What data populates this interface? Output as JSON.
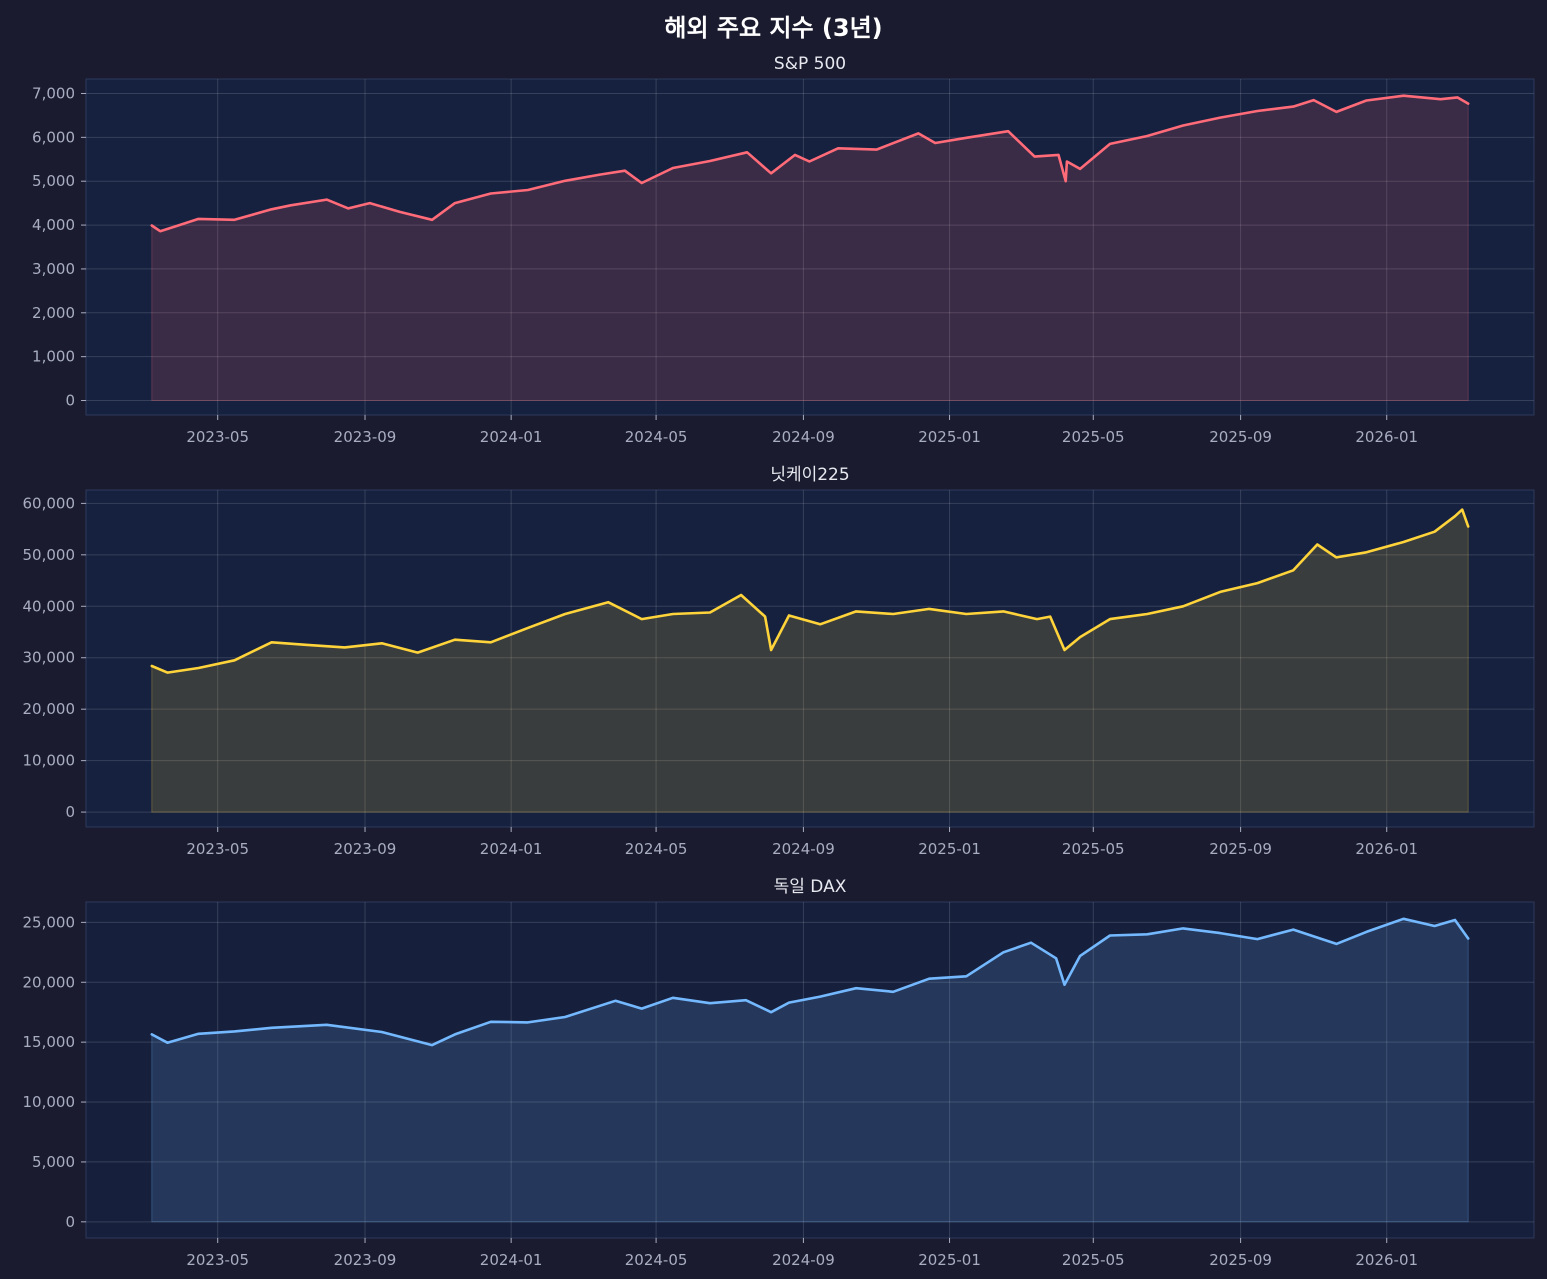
{
  "title": "해외 주요 지수 (3년)",
  "chart_data": [
    {
      "type": "area",
      "title": "S&P 500",
      "color": "#ff6b78",
      "fill": "#ff6b78",
      "x_range": [
        "2023-03-07",
        "2026-03-10"
      ],
      "ylim": [
        -330,
        7330
      ],
      "yticks": [
        0,
        1000,
        2000,
        3000,
        4000,
        5000,
        6000,
        7000
      ],
      "ytick_labels": [
        "0",
        "1,000",
        "2,000",
        "3,000",
        "4,000",
        "5,000",
        "6,000",
        "7,000"
      ],
      "xticks": [
        "2023-05-01",
        "2023-09-01",
        "2024-01-01",
        "2024-05-01",
        "2024-09-01",
        "2025-01-01",
        "2025-05-01",
        "2025-09-01",
        "2026-01-01"
      ],
      "xtick_labels": [
        "2023-05",
        "2023-09",
        "2024-01",
        "2024-05",
        "2024-09",
        "2025-01",
        "2025-05",
        "2025-09",
        "2026-01"
      ],
      "grid": true,
      "series": [
        {
          "x": [
            "2023-03-07",
            "2023-03-14",
            "2023-03-28",
            "2023-04-15",
            "2023-05-15",
            "2023-06-15",
            "2023-07-01",
            "2023-07-31",
            "2023-08-18",
            "2023-09-05",
            "2023-09-30",
            "2023-10-27",
            "2023-11-15",
            "2023-12-15",
            "2024-01-15",
            "2024-02-15",
            "2024-03-15",
            "2024-04-05",
            "2024-04-19",
            "2024-05-15",
            "2024-06-15",
            "2024-07-16",
            "2024-08-05",
            "2024-08-25",
            "2024-09-06",
            "2024-09-30",
            "2024-11-01",
            "2024-12-06",
            "2024-12-20",
            "2025-01-15",
            "2025-02-19",
            "2025-03-13",
            "2025-04-02",
            "2025-04-08",
            "2025-04-09",
            "2025-04-20",
            "2025-05-15",
            "2025-06-15",
            "2025-07-15",
            "2025-08-15",
            "2025-09-15",
            "2025-10-15",
            "2025-11-01",
            "2025-11-20",
            "2025-12-15",
            "2026-01-15",
            "2026-02-15",
            "2026-03-01",
            "2026-03-10"
          ],
          "y": [
            3990,
            3860,
            3980,
            4140,
            4120,
            4360,
            4450,
            4580,
            4380,
            4500,
            4300,
            4120,
            4500,
            4720,
            4800,
            5010,
            5150,
            5240,
            4960,
            5300,
            5460,
            5660,
            5180,
            5600,
            5450,
            5750,
            5720,
            6090,
            5870,
            5990,
            6140,
            5560,
            5600,
            5000,
            5450,
            5280,
            5850,
            6030,
            6270,
            6450,
            6600,
            6700,
            6850,
            6580,
            6840,
            6950,
            6870,
            6910,
            6770
          ]
        }
      ]
    },
    {
      "type": "area",
      "title": "닛케이225",
      "color": "#ffd43b",
      "fill": "#ffd43b",
      "x_range": [
        "2023-03-07",
        "2026-03-10"
      ],
      "ylim": [
        -2900,
        62600
      ],
      "yticks": [
        0,
        10000,
        20000,
        30000,
        40000,
        50000,
        60000
      ],
      "ytick_labels": [
        "0",
        "10,000",
        "20,000",
        "30,000",
        "40,000",
        "50,000",
        "60,000"
      ],
      "xticks": [
        "2023-05-01",
        "2023-09-01",
        "2024-01-01",
        "2024-05-01",
        "2024-09-01",
        "2025-01-01",
        "2025-05-01",
        "2025-09-01",
        "2026-01-01"
      ],
      "xtick_labels": [
        "2023-05",
        "2023-09",
        "2024-01",
        "2024-05",
        "2024-09",
        "2025-01",
        "2025-05",
        "2025-09",
        "2026-01"
      ],
      "grid": true,
      "series": [
        {
          "x": [
            "2023-03-07",
            "2023-03-20",
            "2023-04-15",
            "2023-05-15",
            "2023-06-15",
            "2023-07-15",
            "2023-08-15",
            "2023-09-15",
            "2023-10-15",
            "2023-11-15",
            "2023-12-15",
            "2024-01-15",
            "2024-02-15",
            "2024-03-22",
            "2024-04-19",
            "2024-05-15",
            "2024-06-15",
            "2024-07-11",
            "2024-07-31",
            "2024-08-05",
            "2024-08-20",
            "2024-09-15",
            "2024-10-15",
            "2024-11-15",
            "2024-12-15",
            "2025-01-15",
            "2025-02-15",
            "2025-03-15",
            "2025-03-26",
            "2025-04-07",
            "2025-04-20",
            "2025-05-15",
            "2025-06-15",
            "2025-07-15",
            "2025-08-15",
            "2025-09-15",
            "2025-10-15",
            "2025-11-04",
            "2025-11-20",
            "2025-12-15",
            "2026-01-15",
            "2026-02-10",
            "2026-02-27",
            "2026-03-05",
            "2026-03-10"
          ],
          "y": [
            28400,
            27100,
            28000,
            29500,
            33000,
            32500,
            32000,
            32800,
            31000,
            33500,
            33000,
            35800,
            38500,
            40800,
            37500,
            38500,
            38800,
            42200,
            38000,
            31500,
            38200,
            36500,
            39000,
            38500,
            39500,
            38500,
            39000,
            37500,
            38000,
            31500,
            34000,
            37500,
            38500,
            40000,
            42800,
            44500,
            47000,
            52000,
            49500,
            50500,
            52500,
            54500,
            57500,
            58800,
            55500
          ]
        }
      ]
    },
    {
      "type": "area",
      "title": "독일 DAX",
      "color": "#74b9ff",
      "fill": "#74b9ff",
      "x_range": [
        "2023-03-07",
        "2026-03-10"
      ],
      "ylim": [
        -1350,
        26700
      ],
      "yticks": [
        0,
        5000,
        10000,
        15000,
        20000,
        25000
      ],
      "ytick_labels": [
        "0",
        "5,000",
        "10,000",
        "15,000",
        "20,000",
        "25,000"
      ],
      "xticks": [
        "2023-05-01",
        "2023-09-01",
        "2024-01-01",
        "2024-05-01",
        "2024-09-01",
        "2025-01-01",
        "2025-05-01",
        "2025-09-01",
        "2026-01-01"
      ],
      "xtick_labels": [
        "2023-05",
        "2023-09",
        "2024-01",
        "2024-05",
        "2024-09",
        "2025-01",
        "2025-05",
        "2025-09",
        "2026-01"
      ],
      "grid": true,
      "series": [
        {
          "x": [
            "2023-03-07",
            "2023-03-20",
            "2023-04-15",
            "2023-05-15",
            "2023-06-15",
            "2023-07-31",
            "2023-09-15",
            "2023-10-27",
            "2023-11-15",
            "2023-12-15",
            "2024-01-15",
            "2024-02-15",
            "2024-03-28",
            "2024-04-19",
            "2024-05-15",
            "2024-06-15",
            "2024-07-15",
            "2024-08-05",
            "2024-08-20",
            "2024-09-15",
            "2024-10-15",
            "2024-11-15",
            "2024-12-15",
            "2025-01-15",
            "2025-02-15",
            "2025-03-10",
            "2025-03-31",
            "2025-04-07",
            "2025-04-20",
            "2025-05-15",
            "2025-06-15",
            "2025-07-15",
            "2025-08-15",
            "2025-09-15",
            "2025-10-15",
            "2025-11-20",
            "2025-12-15",
            "2026-01-15",
            "2026-02-10",
            "2026-02-27",
            "2026-03-10"
          ],
          "y": [
            15650,
            14950,
            15700,
            15900,
            16200,
            16450,
            15850,
            14750,
            15650,
            16700,
            16650,
            17100,
            18450,
            17800,
            18700,
            18250,
            18500,
            17500,
            18300,
            18800,
            19500,
            19200,
            20300,
            20500,
            22500,
            23300,
            22000,
            19800,
            22200,
            23900,
            24000,
            24500,
            24100,
            23600,
            24400,
            23200,
            24200,
            25300,
            24700,
            25200,
            23650
          ]
        }
      ]
    }
  ]
}
